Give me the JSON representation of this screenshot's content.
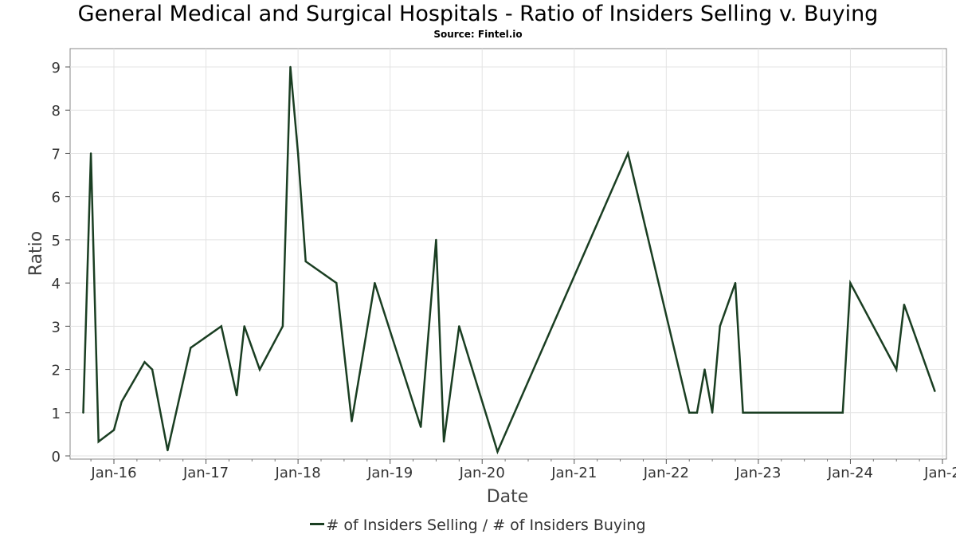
{
  "chart_data": {
    "type": "line",
    "title": "General Medical and Surgical Hospitals - Ratio of Insiders Selling v. Buying",
    "subtitle": "Source: Fintel.io",
    "xlabel": "Date",
    "ylabel": "Ratio",
    "ylim": [
      0,
      9
    ],
    "yticks": [
      "0",
      "1",
      "2",
      "3",
      "4",
      "5",
      "6",
      "7",
      "8",
      "9"
    ],
    "xticks": [
      "Jan-16",
      "Jan-17",
      "Jan-18",
      "Jan-19",
      "Jan-20",
      "Jan-21",
      "Jan-22",
      "Jan-23",
      "Jan-24",
      "Jan-2"
    ],
    "grid": true,
    "legend_position": "bottom-center",
    "line_color": "#1a3e22",
    "series": [
      {
        "name": "# of Insiders Selling / # of Insiders Buying",
        "x": [
          "2015-09",
          "2015-10",
          "2015-11",
          "2016-01",
          "2016-02",
          "2016-05",
          "2016-06",
          "2016-08",
          "2016-11",
          "2017-03",
          "2017-05",
          "2017-06",
          "2017-08",
          "2017-11",
          "2017-12",
          "2018-01",
          "2018-02",
          "2018-06",
          "2018-08",
          "2018-11",
          "2019-05",
          "2019-07",
          "2019-08",
          "2019-10",
          "2020-03",
          "2021-08",
          "2022-04",
          "2022-05",
          "2022-06",
          "2022-07",
          "2022-08",
          "2022-10",
          "2022-11",
          "2023-12",
          "2024-01",
          "2024-07",
          "2024-08",
          "2024-12"
        ],
        "values": [
          1,
          7,
          0.33,
          0.6,
          1.25,
          2.17,
          2,
          0.13,
          2.5,
          3,
          1.4,
          3,
          2,
          3,
          9,
          7,
          4.5,
          4,
          0.8,
          4,
          0.67,
          5,
          0.33,
          3,
          0.1,
          7,
          1,
          1,
          2,
          1,
          3,
          4,
          1,
          1,
          4,
          2,
          3.5,
          1.5
        ]
      }
    ]
  }
}
